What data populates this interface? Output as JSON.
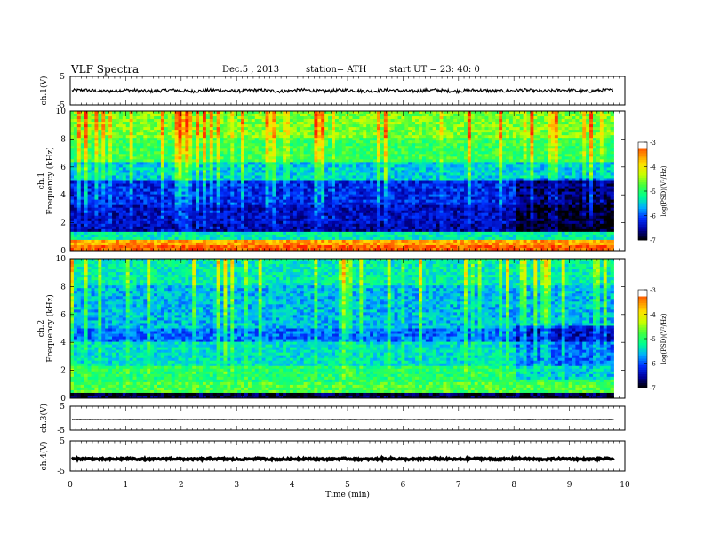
{
  "header": {
    "title": "VLF  Spectra",
    "date": "Dec.5  , 2013",
    "station": "station= ATH",
    "start": "start  UT  =    23: 40: 0"
  },
  "colors": {
    "colormap": [
      "#000000",
      "#0000a0",
      "#0030ff",
      "#00b0ff",
      "#00ff90",
      "#40ff40",
      "#c8ff00",
      "#ffe000",
      "#ff8000",
      "#ff2000",
      "#ffffff"
    ]
  },
  "chart_data": [
    {
      "type": "line",
      "panel": "ch1-waveform",
      "ylabel": "ch.1(V)",
      "yticks": [
        "5",
        "-5"
      ],
      "ylim": [
        -5,
        5
      ],
      "xlim": [
        0,
        10
      ],
      "baseline": 0,
      "noise_amplitude": 0.6,
      "x_end": 9.8
    },
    {
      "type": "heatmap",
      "panel": "ch1-spectrogram",
      "ylabel_channel": "ch.1",
      "ylabel": "Frequency  (kHz)",
      "yticks": [
        "0",
        "2",
        "4",
        "6",
        "8",
        "10"
      ],
      "ylim": [
        0,
        10
      ],
      "xlim": [
        0,
        10
      ],
      "x_end": 9.8,
      "colorbar": {
        "label": "log(PSD)(V²/Hz)",
        "ticks": [
          "-3",
          "-4",
          "-5",
          "-6",
          "-7"
        ],
        "range": [
          -7,
          -3
        ]
      },
      "bands": [
        {
          "f": [
            0,
            0.3
          ],
          "level": -3.3
        },
        {
          "f": [
            0.3,
            0.7
          ],
          "level": -3.6
        },
        {
          "f": [
            0.7,
            1.4
          ],
          "level": -5.3
        },
        {
          "f": [
            1.4,
            2.0
          ],
          "level": -6.5
        },
        {
          "f": [
            2.0,
            3.2
          ],
          "level": -6.4
        },
        {
          "f": [
            3.2,
            5.0
          ],
          "level": -6.2
        },
        {
          "f": [
            5.0,
            6.3
          ],
          "level": -5.5
        },
        {
          "f": [
            6.3,
            8.0
          ],
          "level": -4.9
        },
        {
          "f": [
            8.0,
            10.0
          ],
          "level": -4.6
        }
      ],
      "event_after_min": 8.0
    },
    {
      "type": "heatmap",
      "panel": "ch2-spectrogram",
      "ylabel_channel": "ch.2",
      "ylabel": "Frequency  (kHz)",
      "yticks": [
        "0",
        "2",
        "4",
        "6",
        "8",
        "10"
      ],
      "ylim": [
        0,
        10
      ],
      "xlim": [
        0,
        10
      ],
      "x_end": 9.8,
      "colorbar": {
        "label": "log(PSD)(V²/Hz)",
        "ticks": [
          "-3",
          "-4",
          "-5",
          "-6",
          "-7"
        ],
        "range": [
          -7,
          -3
        ]
      },
      "bands": [
        {
          "f": [
            0,
            0.3
          ],
          "level": -6.8
        },
        {
          "f": [
            0.3,
            1.2
          ],
          "level": -4.8
        },
        {
          "f": [
            1.2,
            2.4
          ],
          "level": -5.0
        },
        {
          "f": [
            2.4,
            4.0
          ],
          "level": -5.4
        },
        {
          "f": [
            4.0,
            5.0
          ],
          "level": -5.9
        },
        {
          "f": [
            5.0,
            8.0
          ],
          "level": -5.6
        },
        {
          "f": [
            8.0,
            10.0
          ],
          "level": -5.3
        }
      ],
      "event_after_min": 8.0
    },
    {
      "type": "line",
      "panel": "ch3-waveform",
      "ylabel": "ch.3(V)",
      "yticks": [
        "5",
        "-5"
      ],
      "ylim": [
        -5,
        5
      ],
      "xlim": [
        0,
        10
      ],
      "baseline": -0.5,
      "noise_amplitude": 0.05,
      "x_end": 9.8
    },
    {
      "type": "line",
      "panel": "ch4-waveform",
      "ylabel": "ch.4(V)",
      "yticks": [
        "5",
        "-5"
      ],
      "ylim": [
        -5,
        5
      ],
      "xlim": [
        0,
        10
      ],
      "baseline": -1.0,
      "noise_amplitude": 0.3,
      "x_end": 9.8
    }
  ],
  "x_axis": {
    "label": "Time  (min)",
    "ticks": [
      "0",
      "1",
      "2",
      "3",
      "4",
      "5",
      "6",
      "7",
      "8",
      "9",
      "10"
    ],
    "range": [
      0,
      10
    ]
  }
}
